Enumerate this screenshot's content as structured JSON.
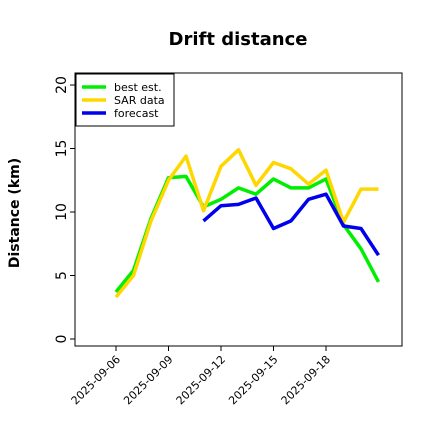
{
  "chart_data": {
    "type": "line",
    "title": "Drift distance",
    "xlabel": "",
    "ylabel": "Distance (km)",
    "ylim": [
      0,
      20
    ],
    "yticks": [
      0,
      5,
      10,
      15,
      20
    ],
    "xlim": [
      "2025-09-04",
      "2025-09-22"
    ],
    "xticks": [
      "2025-09-06",
      "2025-09-09",
      "2025-09-12",
      "2025-09-15",
      "2025-09-18"
    ],
    "grid": false,
    "legend_position": "top-left",
    "series": [
      {
        "name": "best est.",
        "color": "#00ee00",
        "x": [
          "2025-09-06",
          "2025-09-07",
          "2025-09-08",
          "2025-09-09",
          "2025-09-10",
          "2025-09-11",
          "2025-09-12",
          "2025-09-13",
          "2025-09-14",
          "2025-09-15",
          "2025-09-16",
          "2025-09-17",
          "2025-09-18",
          "2025-09-19",
          "2025-09-20",
          "2025-09-21"
        ],
        "values": [
          3.7,
          5.4,
          9.5,
          12.7,
          12.8,
          10.4,
          11.0,
          11.9,
          11.4,
          12.6,
          11.9,
          11.9,
          12.6,
          9.0,
          7.1,
          4.5
        ]
      },
      {
        "name": "SAR data",
        "color": "#ffd700",
        "x": [
          "2025-09-06",
          "2025-09-07",
          "2025-09-08",
          "2025-09-09",
          "2025-09-10",
          "2025-09-11",
          "2025-09-12",
          "2025-09-13",
          "2025-09-14",
          "2025-09-15",
          "2025-09-16",
          "2025-09-17",
          "2025-09-18",
          "2025-09-19",
          "2025-09-20",
          "2025-09-21"
        ],
        "values": [
          3.3,
          5.0,
          9.3,
          12.5,
          14.4,
          10.1,
          13.6,
          14.9,
          12.1,
          13.9,
          13.4,
          12.2,
          13.3,
          9.2,
          11.8,
          11.8
        ]
      },
      {
        "name": "forecast",
        "color": "#0000ee",
        "x": [
          "2025-09-11",
          "2025-09-12",
          "2025-09-13",
          "2025-09-14",
          "2025-09-15",
          "2025-09-16",
          "2025-09-17",
          "2025-09-18",
          "2025-09-19",
          "2025-09-20",
          "2025-09-21"
        ],
        "values": [
          9.3,
          10.5,
          10.6,
          11.1,
          8.7,
          9.3,
          11.0,
          11.4,
          8.9,
          8.7,
          6.6
        ]
      }
    ]
  }
}
